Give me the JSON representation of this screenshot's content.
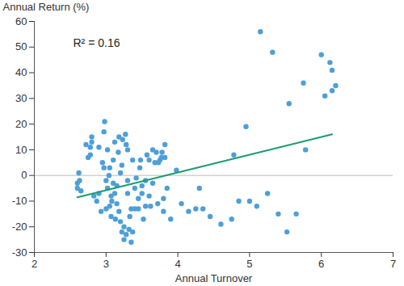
{
  "chart_data": {
    "type": "scatter",
    "x_label": "Annual Turnover",
    "y_label": "Annual Return (%)",
    "annotation": "R² = 0.16",
    "color": "#4e9fd8",
    "marker": "circle",
    "xlim": [
      2,
      7
    ],
    "xticks": [
      2,
      3,
      4,
      5,
      6,
      7
    ],
    "ylim": [
      -30,
      60
    ],
    "yticks": [
      -30,
      -20,
      -10,
      0,
      10,
      20,
      30,
      40,
      50,
      60
    ],
    "grid": false,
    "reference_y": 0,
    "trend_line": {
      "x": [
        2.6,
        6.15
      ],
      "values": [
        -8.5,
        16
      ],
      "color": "#1a9e6e"
    },
    "x": [
      2.6,
      2.62,
      2.63,
      2.65,
      2.6,
      2.72,
      2.75,
      2.78,
      2.8,
      2.8,
      2.78,
      2.83,
      2.87,
      2.9,
      2.9,
      2.93,
      2.95,
      2.97,
      2.97,
      2.98,
      3.0,
      3.0,
      3.02,
      3.02,
      3.04,
      3.05,
      3.05,
      3.07,
      3.07,
      3.08,
      3.1,
      3.1,
      3.12,
      3.12,
      3.13,
      3.15,
      3.15,
      3.17,
      3.18,
      3.18,
      3.2,
      3.2,
      3.22,
      3.22,
      3.23,
      3.25,
      3.25,
      3.27,
      3.28,
      3.28,
      3.3,
      3.3,
      3.3,
      3.32,
      3.33,
      3.35,
      3.35,
      3.37,
      3.37,
      3.4,
      3.4,
      3.42,
      3.45,
      3.45,
      3.47,
      3.48,
      3.5,
      3.5,
      3.52,
      3.55,
      3.55,
      3.57,
      3.6,
      3.6,
      3.62,
      3.65,
      3.65,
      3.68,
      3.7,
      3.72,
      3.73,
      3.75,
      3.77,
      3.78,
      3.8,
      3.8,
      3.82,
      3.82,
      3.85,
      3.9,
      3.98,
      4.05,
      4.15,
      4.25,
      4.3,
      4.35,
      4.45,
      4.6,
      4.75,
      4.78,
      4.85,
      4.95,
      5.0,
      5.1,
      5.15,
      5.25,
      5.32,
      5.4,
      5.52,
      5.55,
      5.65,
      5.75,
      5.78,
      6.0,
      6.05,
      6.12,
      6.15,
      6.15,
      6.2
    ],
    "values": [
      -3,
      1,
      -2,
      -6,
      -5,
      12,
      7,
      8,
      15,
      13,
      11,
      -8,
      -10,
      -7,
      11,
      -14,
      5,
      3,
      17,
      21,
      -2,
      -13,
      -5,
      10,
      0,
      -12,
      3,
      -8,
      -16,
      -10,
      6,
      -3,
      -7,
      13,
      -17,
      -11,
      -4,
      9,
      15,
      -14,
      -18,
      1,
      -22,
      4,
      14,
      -25,
      -20,
      16,
      -23,
      12,
      -7,
      -2,
      10,
      -21,
      -16,
      -26,
      -13,
      -22,
      6,
      -5,
      -13,
      -1,
      -13,
      -9,
      3,
      6,
      -4,
      -7,
      -17,
      -12,
      -2,
      8,
      -8,
      6,
      -12,
      10,
      -3,
      5,
      9,
      -11,
      5,
      6,
      7,
      9,
      -9,
      -14,
      7,
      12,
      -5,
      -17,
      2,
      -11,
      -14,
      -13,
      -5,
      -13,
      -16,
      -19,
      -17,
      8,
      -10,
      19,
      -10,
      -12,
      56,
      -7,
      48,
      -15,
      -22,
      28,
      -15,
      36,
      10,
      47,
      31,
      44,
      41,
      33,
      35
    ]
  }
}
